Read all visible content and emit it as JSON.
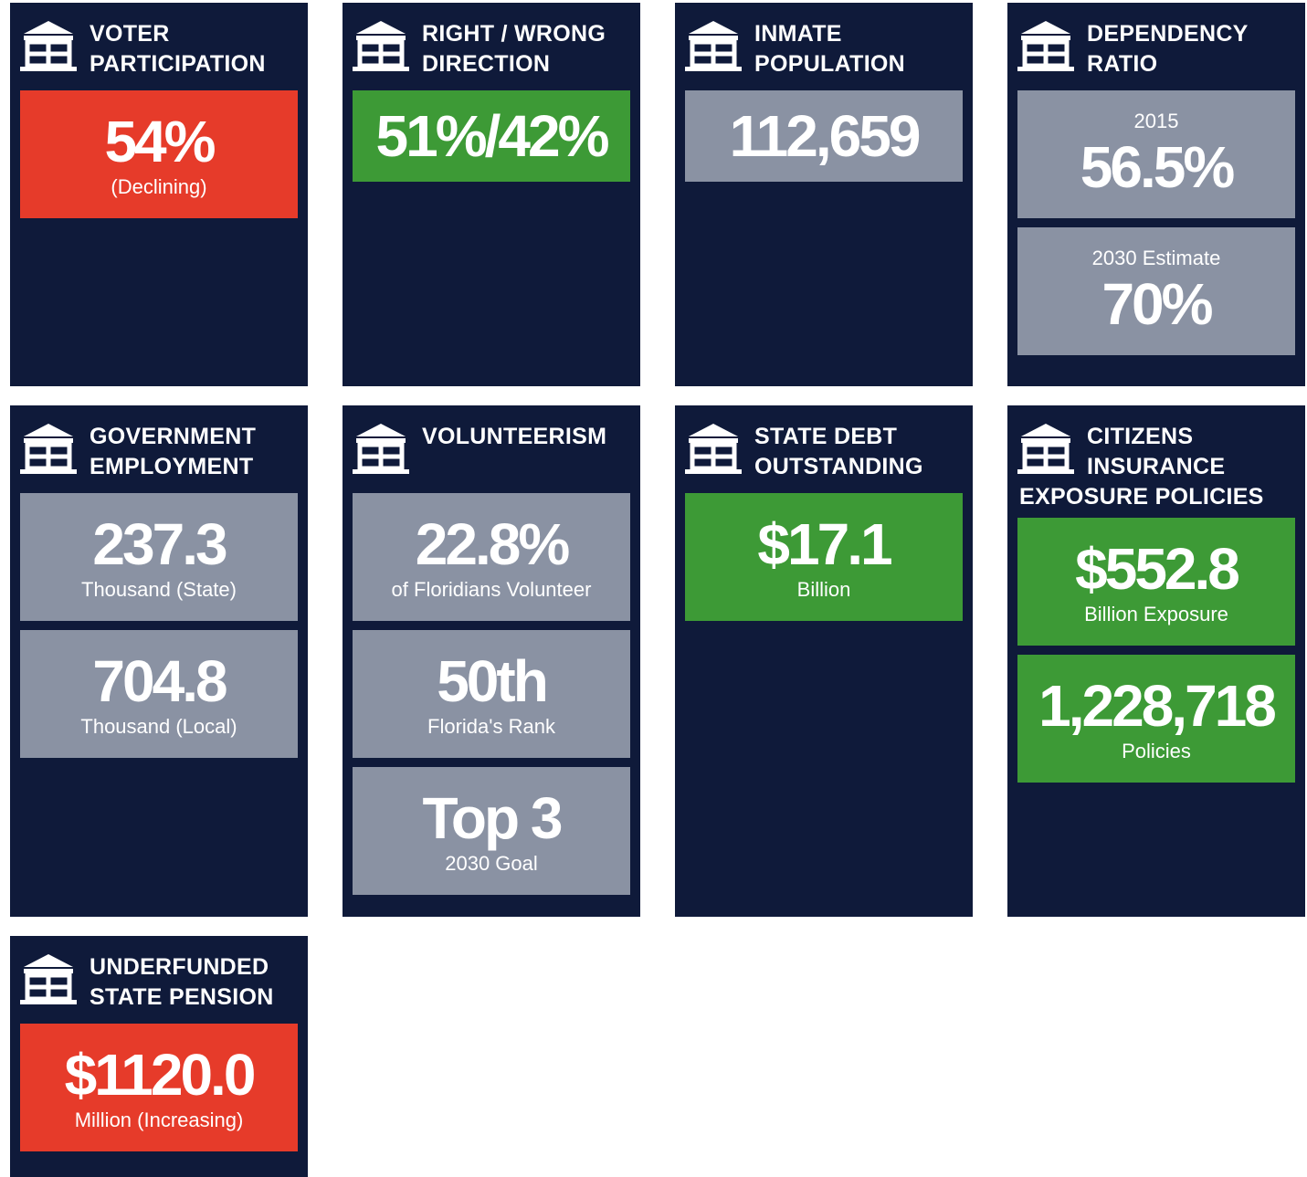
{
  "cards": [
    {
      "title": [
        "VOTER",
        "PARTICIPATION"
      ],
      "boxes": [
        {
          "value": "54%",
          "bottom": "(Declining)",
          "color": "#e63b2a"
        }
      ]
    },
    {
      "title": [
        "RIGHT / WRONG",
        "DIRECTION"
      ],
      "boxes": [
        {
          "value": "51%/42%",
          "color": "#3d9a36"
        }
      ]
    },
    {
      "title": [
        "INMATE",
        "POPULATION"
      ],
      "boxes": [
        {
          "value": "112,659",
          "color": "#8a92a3"
        }
      ]
    },
    {
      "title": [
        "DEPENDENCY",
        "RATIO"
      ],
      "boxes": [
        {
          "top": "2015",
          "value": "56.5%",
          "color": "#8a92a3"
        },
        {
          "top": "2030 Estimate",
          "value": "70%",
          "color": "#8a92a3"
        }
      ]
    },
    {
      "title": [
        "GOVERNMENT",
        "EMPLOYMENT"
      ],
      "boxes": [
        {
          "value": "237.3",
          "bottom": "Thousand (State)",
          "color": "#8a92a3"
        },
        {
          "value": "704.8",
          "bottom": "Thousand (Local)",
          "color": "#8a92a3"
        }
      ]
    },
    {
      "title": [
        "VOLUNTEERISM"
      ],
      "boxes": [
        {
          "value": "22.8%",
          "bottom": "of Floridians Volunteer",
          "color": "#8a92a3"
        },
        {
          "value": "50th",
          "bottom": "Florida's Rank",
          "color": "#8a92a3"
        },
        {
          "value": "Top 3",
          "bottom": "2030 Goal",
          "color": "#8a92a3"
        }
      ]
    },
    {
      "title": [
        "STATE DEBT",
        "OUTSTANDING"
      ],
      "boxes": [
        {
          "value": "$17.1",
          "bottom": "Billion",
          "color": "#3d9a36"
        }
      ]
    },
    {
      "title": [
        "CITIZENS",
        "INSURANCE",
        "EXPOSURE POLICIES"
      ],
      "boxes": [
        {
          "value": "$552.8",
          "bottom": "Billion Exposure",
          "color": "#3d9a36"
        },
        {
          "value": "1,228,718",
          "bottom": "Policies",
          "color": "#3d9a36"
        }
      ]
    },
    {
      "title": [
        "UNDERFUNDED",
        "STATE PENSION"
      ],
      "boxes": [
        {
          "value": "$1120.0",
          "bottom": "Million (Increasing)",
          "color": "#e63b2a"
        }
      ]
    }
  ]
}
